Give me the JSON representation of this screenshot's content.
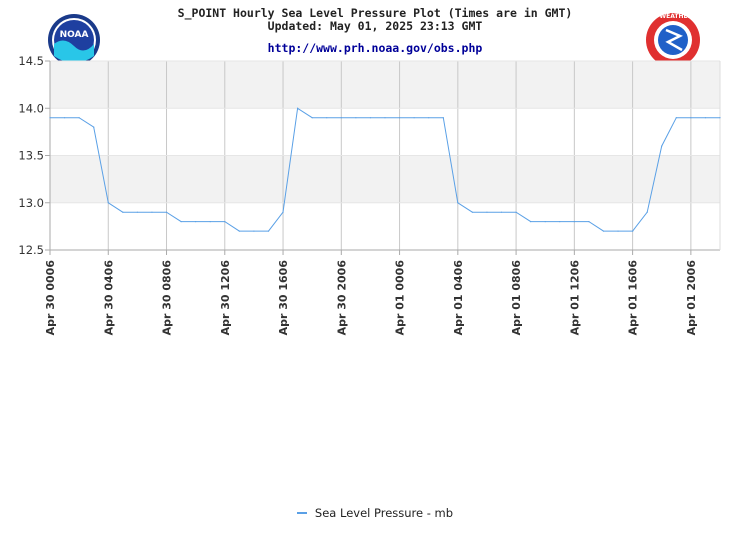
{
  "header": {
    "title_line1": "S_POINT Hourly Sea Level Pressure Plot (Times are in GMT)",
    "title_line2": "Updated: May 01, 2025 23:13 GMT",
    "url": "http://www.prh.noaa.gov/obs.php",
    "left_logo_text": "NOAA",
    "right_logo_text": "NATIONAL WEATHER SERVICE"
  },
  "colors": {
    "series": "#5aa0e6",
    "band": "#f2f2f2",
    "grid": "#c8c8c8",
    "axis": "#aaaaaa"
  },
  "chart_data": {
    "type": "line",
    "title": "S_POINT Hourly Sea Level Pressure Plot (Times are in GMT)",
    "subtitle": "Updated: May 01, 2025 23:13 GMT",
    "ylim": [
      12.5,
      14.5
    ],
    "yticks": [
      "12.5",
      "13.0",
      "13.5",
      "14.0",
      "14.5"
    ],
    "xrange_hours": [
      0,
      46
    ],
    "xticks": [
      {
        "label": "Apr 30 0006",
        "hour": 0
      },
      {
        "label": "Apr 30 0406",
        "hour": 4
      },
      {
        "label": "Apr 30 0806",
        "hour": 8
      },
      {
        "label": "Apr 30 1206",
        "hour": 12
      },
      {
        "label": "Apr 30 1606",
        "hour": 16
      },
      {
        "label": "Apr 30 2006",
        "hour": 20
      },
      {
        "label": "Apr 01 0006",
        "hour": 24
      },
      {
        "label": "Apr 01 0406",
        "hour": 28
      },
      {
        "label": "Apr 01 0806",
        "hour": 32
      },
      {
        "label": "Apr 01 1206",
        "hour": 36
      },
      {
        "label": "Apr 01 1606",
        "hour": 40
      },
      {
        "label": "Apr 01 2006",
        "hour": 44
      }
    ],
    "grid": true,
    "legend_position": "bottom-center",
    "series": [
      {
        "name": "Sea Level Pressure - mb",
        "x": [
          0,
          1,
          2,
          3,
          4,
          5,
          6,
          7,
          8,
          9,
          10,
          11,
          12,
          13,
          14,
          15,
          16,
          17,
          18,
          19,
          20,
          21,
          22,
          23,
          24,
          25,
          26,
          27,
          28,
          29,
          30,
          31,
          32,
          33,
          34,
          35,
          36,
          37,
          38,
          39,
          40,
          41,
          42,
          43,
          44,
          45,
          46
        ],
        "y": [
          13.9,
          13.9,
          13.9,
          13.8,
          13.0,
          12.9,
          12.9,
          12.9,
          12.9,
          12.8,
          12.8,
          12.8,
          12.8,
          12.7,
          12.7,
          12.7,
          12.9,
          14.0,
          13.9,
          13.9,
          13.9,
          13.9,
          13.9,
          13.9,
          13.9,
          13.9,
          13.9,
          13.9,
          13.0,
          12.9,
          12.9,
          12.9,
          12.9,
          12.8,
          12.8,
          12.8,
          12.8,
          12.8,
          12.7,
          12.7,
          12.7,
          12.9,
          13.6,
          13.9,
          13.9,
          13.9,
          13.9
        ]
      }
    ]
  }
}
